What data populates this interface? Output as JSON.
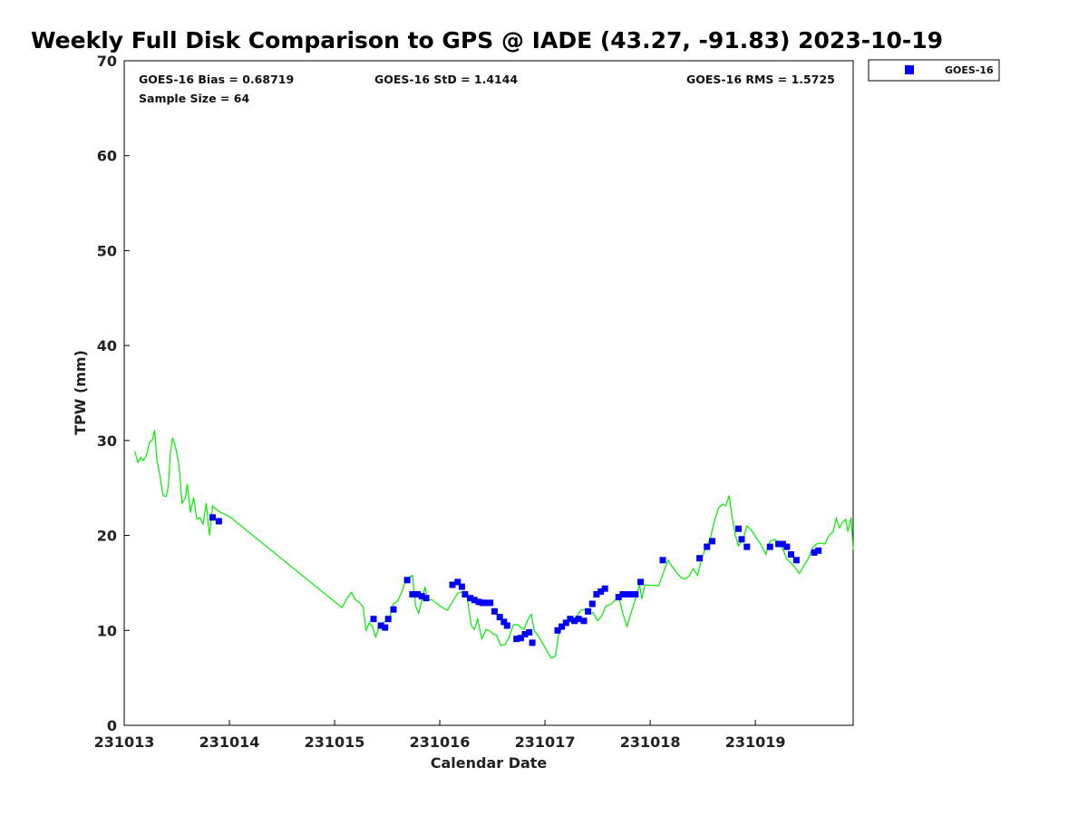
{
  "chart_data": {
    "type": "line",
    "title": "Weekly Full Disk Comparison to GPS @ IADE (43.27, -91.83) 2023-10-19",
    "xlabel": "Calendar Date",
    "ylabel": "TPW (mm)",
    "xlim": [
      0,
      6.93
    ],
    "ylim": [
      0,
      70
    ],
    "x_tick_values": [
      0,
      1,
      2,
      3,
      4,
      5,
      6
    ],
    "x_tick_labels": [
      "231013",
      "231014",
      "231015",
      "231016",
      "231017",
      "231018",
      "231019"
    ],
    "y_ticks": [
      0,
      10,
      20,
      30,
      40,
      50,
      60,
      70
    ],
    "grid": false,
    "legend_position": "top-right, outside plot",
    "stats": {
      "bias": "GOES-16 Bias = 0.68719",
      "std": "GOES-16 StD = 1.4144",
      "rms": "GOES-16 RMS = 1.5725",
      "sample": "Sample Size = 64"
    },
    "series": [
      {
        "name": "GOES-16",
        "type": "scatter",
        "marker": "square",
        "color": "#0000ff",
        "points": [
          [
            0.84,
            21.9
          ],
          [
            0.9,
            21.5
          ],
          [
            2.37,
            11.2
          ],
          [
            2.44,
            10.5
          ],
          [
            2.48,
            10.3
          ],
          [
            2.51,
            11.2
          ],
          [
            2.56,
            12.2
          ],
          [
            2.69,
            15.3
          ],
          [
            2.74,
            13.8
          ],
          [
            2.79,
            13.8
          ],
          [
            2.83,
            13.6
          ],
          [
            2.87,
            13.4
          ],
          [
            3.12,
            14.8
          ],
          [
            3.17,
            15.1
          ],
          [
            3.21,
            14.6
          ],
          [
            3.24,
            13.8
          ],
          [
            3.29,
            13.4
          ],
          [
            3.33,
            13.2
          ],
          [
            3.37,
            13.0
          ],
          [
            3.41,
            12.9
          ],
          [
            3.44,
            12.9
          ],
          [
            3.48,
            12.9
          ],
          [
            3.52,
            12.0
          ],
          [
            3.57,
            11.4
          ],
          [
            3.61,
            10.9
          ],
          [
            3.64,
            10.5
          ],
          [
            3.73,
            9.1
          ],
          [
            3.77,
            9.2
          ],
          [
            3.81,
            9.6
          ],
          [
            3.85,
            9.8
          ],
          [
            3.88,
            8.7
          ],
          [
            4.12,
            10.0
          ],
          [
            4.16,
            10.4
          ],
          [
            4.2,
            10.8
          ],
          [
            4.24,
            11.2
          ],
          [
            4.28,
            11.0
          ],
          [
            4.32,
            11.2
          ],
          [
            4.37,
            11.0
          ],
          [
            4.41,
            12.0
          ],
          [
            4.45,
            12.8
          ],
          [
            4.49,
            13.8
          ],
          [
            4.53,
            14.1
          ],
          [
            4.57,
            14.4
          ],
          [
            4.7,
            13.5
          ],
          [
            4.74,
            13.8
          ],
          [
            4.78,
            13.8
          ],
          [
            4.82,
            13.8
          ],
          [
            4.86,
            13.8
          ],
          [
            4.91,
            15.1
          ],
          [
            5.12,
            17.4
          ],
          [
            5.47,
            17.6
          ],
          [
            5.54,
            18.8
          ],
          [
            5.59,
            19.4
          ],
          [
            5.84,
            20.7
          ],
          [
            5.87,
            19.6
          ],
          [
            5.92,
            18.8
          ],
          [
            6.14,
            18.8
          ],
          [
            6.22,
            19.1
          ],
          [
            6.26,
            19.1
          ],
          [
            6.3,
            18.8
          ],
          [
            6.34,
            18.0
          ],
          [
            6.39,
            17.4
          ],
          [
            6.56,
            18.2
          ],
          [
            6.6,
            18.4
          ]
        ]
      },
      {
        "name": "GPS",
        "type": "line",
        "color": "#00ee00",
        "points": [
          [
            0.1,
            28.9
          ],
          [
            0.13,
            27.7
          ],
          [
            0.16,
            28.2
          ],
          [
            0.18,
            27.9
          ],
          [
            0.21,
            28.4
          ],
          [
            0.24,
            29.8
          ],
          [
            0.27,
            30.1
          ],
          [
            0.29,
            31.1
          ],
          [
            0.31,
            28.0
          ],
          [
            0.34,
            26.3
          ],
          [
            0.37,
            24.2
          ],
          [
            0.4,
            24.1
          ],
          [
            0.42,
            25.2
          ],
          [
            0.44,
            28.8
          ],
          [
            0.46,
            30.3
          ],
          [
            0.49,
            29.2
          ],
          [
            0.52,
            27.5
          ],
          [
            0.55,
            23.4
          ],
          [
            0.58,
            23.9
          ],
          [
            0.6,
            25.4
          ],
          [
            0.63,
            22.4
          ],
          [
            0.66,
            24.0
          ],
          [
            0.69,
            21.7
          ],
          [
            0.72,
            21.9
          ],
          [
            0.75,
            21.2
          ],
          [
            0.78,
            23.4
          ],
          [
            0.81,
            20.0
          ],
          [
            0.84,
            23.1
          ],
          [
            0.87,
            22.8
          ],
          [
            0.92,
            22.4
          ],
          [
            1.0,
            22.0
          ],
          [
            2.07,
            12.4
          ],
          [
            2.12,
            13.4
          ],
          [
            2.16,
            14.0
          ],
          [
            2.2,
            13.2
          ],
          [
            2.23,
            13.0
          ],
          [
            2.27,
            12.5
          ],
          [
            2.3,
            10.0
          ],
          [
            2.33,
            10.8
          ],
          [
            2.36,
            10.4
          ],
          [
            2.39,
            9.3
          ],
          [
            2.43,
            10.6
          ],
          [
            2.48,
            10.9
          ],
          [
            2.52,
            11.2
          ],
          [
            2.56,
            12.8
          ],
          [
            2.6,
            13.1
          ],
          [
            2.64,
            14.1
          ],
          [
            2.68,
            15.4
          ],
          [
            2.71,
            15.6
          ],
          [
            2.74,
            15.8
          ],
          [
            2.77,
            12.6
          ],
          [
            2.8,
            11.8
          ],
          [
            2.83,
            13.2
          ],
          [
            2.86,
            14.6
          ],
          [
            2.88,
            13.3
          ],
          [
            2.93,
            13.2
          ],
          [
            3.0,
            12.6
          ],
          [
            3.07,
            12.1
          ],
          [
            3.12,
            13.0
          ],
          [
            3.17,
            13.9
          ],
          [
            3.22,
            14.1
          ],
          [
            3.26,
            13.5
          ],
          [
            3.3,
            10.5
          ],
          [
            3.33,
            10.1
          ],
          [
            3.36,
            11.2
          ],
          [
            3.4,
            9.1
          ],
          [
            3.44,
            10.1
          ],
          [
            3.48,
            9.9
          ],
          [
            3.51,
            9.6
          ],
          [
            3.54,
            9.5
          ],
          [
            3.58,
            8.4
          ],
          [
            3.62,
            8.5
          ],
          [
            3.66,
            9.3
          ],
          [
            3.7,
            10.6
          ],
          [
            3.74,
            10.6
          ],
          [
            3.77,
            10.3
          ],
          [
            3.8,
            10.1
          ],
          [
            3.84,
            11.2
          ],
          [
            3.87,
            11.7
          ],
          [
            3.9,
            9.9
          ],
          [
            3.94,
            9.4
          ],
          [
            3.98,
            8.6
          ],
          [
            4.02,
            7.8
          ],
          [
            4.06,
            7.1
          ],
          [
            4.1,
            7.3
          ],
          [
            4.13,
            9.6
          ],
          [
            4.17,
            10.4
          ],
          [
            4.21,
            10.7
          ],
          [
            4.26,
            11.2
          ],
          [
            4.3,
            11.4
          ],
          [
            4.34,
            12.1
          ],
          [
            4.38,
            12.2
          ],
          [
            4.42,
            11.7
          ],
          [
            4.46,
            11.9
          ],
          [
            4.5,
            11.0
          ],
          [
            4.54,
            11.5
          ],
          [
            4.58,
            12.6
          ],
          [
            4.62,
            12.7
          ],
          [
            4.66,
            13.1
          ],
          [
            4.7,
            13.6
          ],
          [
            4.74,
            11.8
          ],
          [
            4.78,
            10.4
          ],
          [
            4.82,
            11.9
          ],
          [
            4.86,
            13.3
          ],
          [
            4.9,
            14.8
          ],
          [
            4.92,
            13.3
          ],
          [
            4.95,
            14.8
          ],
          [
            5.08,
            14.7
          ],
          [
            5.13,
            16.2
          ],
          [
            5.17,
            17.4
          ],
          [
            5.21,
            16.7
          ],
          [
            5.25,
            16.1
          ],
          [
            5.29,
            15.6
          ],
          [
            5.33,
            15.4
          ],
          [
            5.37,
            15.7
          ],
          [
            5.41,
            16.5
          ],
          [
            5.45,
            15.8
          ],
          [
            5.49,
            17.5
          ],
          [
            5.53,
            18.8
          ],
          [
            5.57,
            19.6
          ],
          [
            5.61,
            21.5
          ],
          [
            5.65,
            22.9
          ],
          [
            5.69,
            23.3
          ],
          [
            5.72,
            23.1
          ],
          [
            5.75,
            24.2
          ],
          [
            5.78,
            21.9
          ],
          [
            5.81,
            20.0
          ],
          [
            5.84,
            18.9
          ],
          [
            5.88,
            19.5
          ],
          [
            5.92,
            21.0
          ],
          [
            5.96,
            20.6
          ],
          [
            6.0,
            19.9
          ],
          [
            6.05,
            19.1
          ],
          [
            6.1,
            18.0
          ],
          [
            6.14,
            19.4
          ],
          [
            6.18,
            19.6
          ],
          [
            6.22,
            19.3
          ],
          [
            6.26,
            18.6
          ],
          [
            6.3,
            17.5
          ],
          [
            6.34,
            17.1
          ],
          [
            6.38,
            16.6
          ],
          [
            6.42,
            16.0
          ],
          [
            6.46,
            16.8
          ],
          [
            6.5,
            17.5
          ],
          [
            6.54,
            18.6
          ],
          [
            6.58,
            19.1
          ],
          [
            6.62,
            19.2
          ],
          [
            6.66,
            19.1
          ],
          [
            6.7,
            20.0
          ],
          [
            6.74,
            20.4
          ],
          [
            6.77,
            21.8
          ],
          [
            6.8,
            20.8
          ],
          [
            6.83,
            21.4
          ],
          [
            6.86,
            21.7
          ],
          [
            6.88,
            20.4
          ],
          [
            6.91,
            21.9
          ],
          [
            6.93,
            18.5
          ]
        ]
      }
    ]
  }
}
